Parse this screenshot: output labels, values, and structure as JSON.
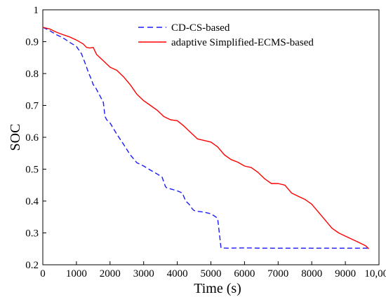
{
  "chart_data": {
    "type": "line",
    "title": "",
    "xlabel": "Time (s)",
    "ylabel": "SOC",
    "xlim": [
      0,
      10000
    ],
    "ylim": [
      0.2,
      1.0
    ],
    "grid": false,
    "legend_position": "top-right",
    "x_ticks": [
      0,
      1000,
      2000,
      3000,
      4000,
      5000,
      6000,
      7000,
      8000,
      9000,
      10000
    ],
    "x_tick_labels": [
      "0",
      "1000",
      "2000",
      "3000",
      "4000",
      "5000",
      "6000",
      "7000",
      "8000",
      "9000",
      "10,000"
    ],
    "y_ticks": [
      0.2,
      0.3,
      0.4,
      0.5,
      0.6,
      0.7,
      0.8,
      0.9,
      1.0
    ],
    "y_tick_labels": [
      "0.2",
      "0.3",
      "0.4",
      "0.5",
      "0.6",
      "0.7",
      "0.8",
      "0.9",
      "1"
    ],
    "series": [
      {
        "name": "CD-CS-based",
        "color": "#1a1aff",
        "style": "dashed",
        "x": [
          0,
          200,
          400,
          600,
          800,
          1000,
          1150,
          1250,
          1350,
          1450,
          1500,
          1550,
          1650,
          1700,
          1750,
          1800,
          1850,
          1900,
          2000,
          2200,
          2400,
          2600,
          2800,
          3000,
          3200,
          3400,
          3550,
          3650,
          3700,
          3800,
          4000,
          4150,
          4250,
          4350,
          4450,
          4500,
          4600,
          4800,
          5000,
          5150,
          5200,
          5250,
          5300,
          5500,
          6000,
          6500,
          7000,
          7500,
          8000,
          8500,
          9000,
          9500,
          9700
        ],
        "y": [
          0.945,
          0.935,
          0.922,
          0.912,
          0.898,
          0.885,
          0.862,
          0.835,
          0.805,
          0.78,
          0.765,
          0.76,
          0.74,
          0.73,
          0.72,
          0.71,
          0.665,
          0.655,
          0.645,
          0.61,
          0.578,
          0.545,
          0.52,
          0.51,
          0.497,
          0.485,
          0.475,
          0.445,
          0.44,
          0.438,
          0.432,
          0.425,
          0.4,
          0.39,
          0.375,
          0.37,
          0.368,
          0.365,
          0.36,
          0.35,
          0.345,
          0.3,
          0.253,
          0.252,
          0.253,
          0.252,
          0.252,
          0.252,
          0.252,
          0.252,
          0.252,
          0.252,
          0.252
        ]
      },
      {
        "name": "adaptive Simplified-ECMS-based",
        "color": "#ff0000",
        "style": "solid",
        "x": [
          0,
          200,
          400,
          600,
          800,
          1000,
          1200,
          1300,
          1400,
          1500,
          1600,
          1800,
          2000,
          2200,
          2400,
          2600,
          2800,
          3000,
          3200,
          3400,
          3600,
          3800,
          4000,
          4200,
          4400,
          4600,
          4800,
          5000,
          5200,
          5400,
          5600,
          5800,
          6000,
          6200,
          6400,
          6600,
          6800,
          7000,
          7200,
          7400,
          7600,
          7800,
          8000,
          8200,
          8400,
          8600,
          8800,
          9000,
          9200,
          9400,
          9600,
          9700
        ],
        "y": [
          0.945,
          0.94,
          0.93,
          0.922,
          0.915,
          0.905,
          0.893,
          0.882,
          0.88,
          0.882,
          0.86,
          0.84,
          0.82,
          0.81,
          0.79,
          0.765,
          0.735,
          0.715,
          0.7,
          0.685,
          0.665,
          0.655,
          0.652,
          0.635,
          0.615,
          0.595,
          0.59,
          0.585,
          0.57,
          0.545,
          0.53,
          0.522,
          0.51,
          0.505,
          0.49,
          0.47,
          0.455,
          0.455,
          0.45,
          0.425,
          0.415,
          0.405,
          0.39,
          0.365,
          0.34,
          0.315,
          0.3,
          0.29,
          0.28,
          0.27,
          0.26,
          0.25
        ]
      }
    ]
  }
}
